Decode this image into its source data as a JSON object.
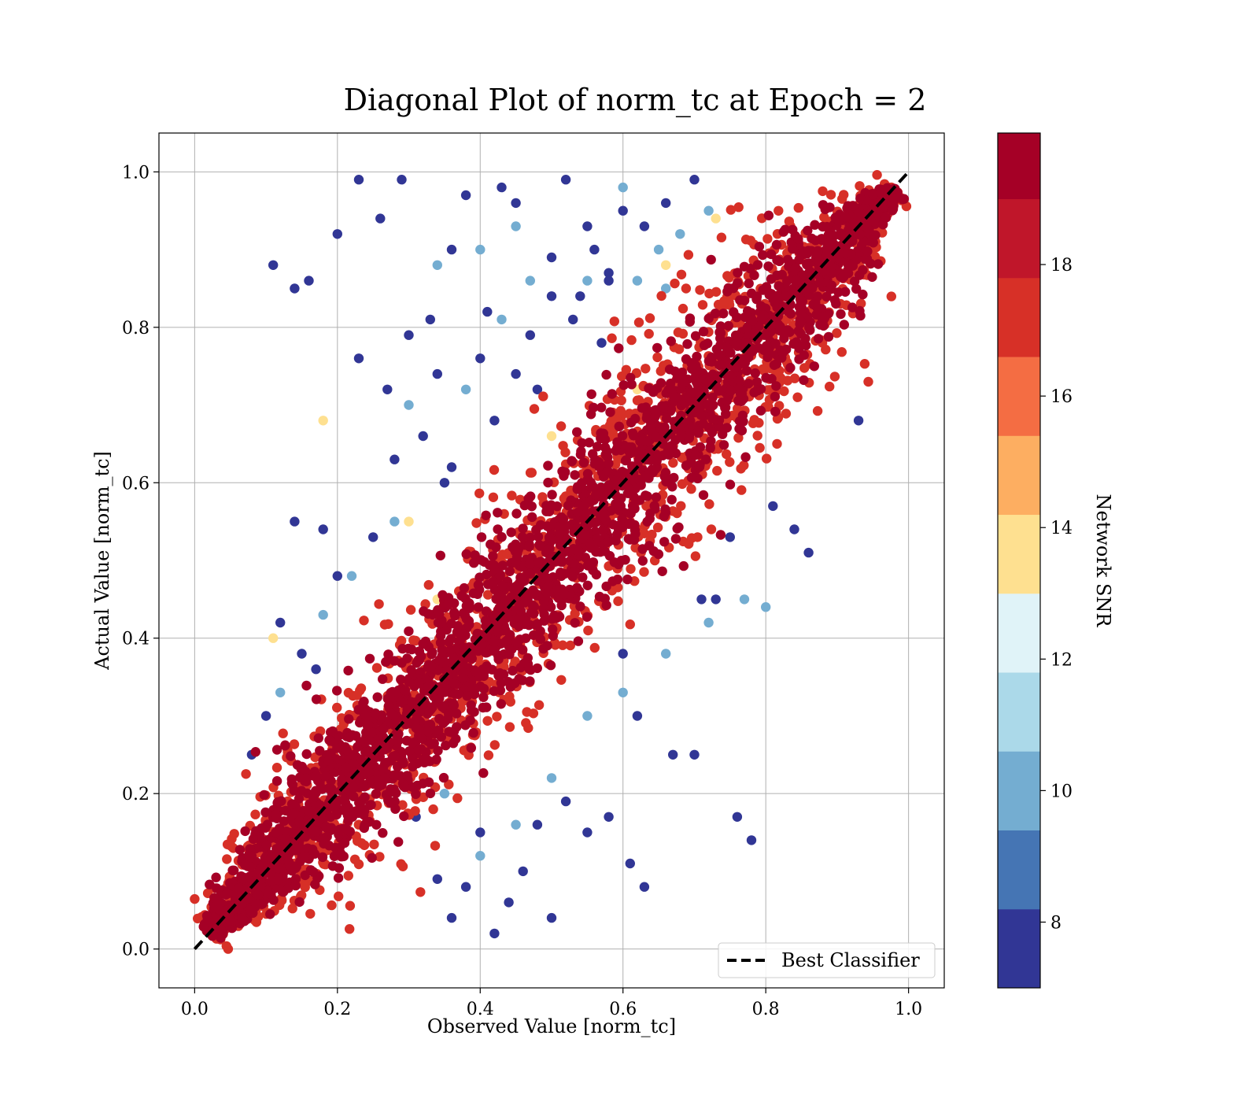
{
  "chart_data": {
    "type": "scatter",
    "title": "Diagonal Plot of norm_tc at Epoch = 2",
    "xlabel": "Observed Value [norm_tc]",
    "ylabel": "Actual Value [norm_tc]",
    "xlim": [
      -0.05,
      1.05
    ],
    "ylim": [
      -0.05,
      1.05
    ],
    "xticks": [
      "0.0",
      "0.2",
      "0.4",
      "0.6",
      "0.8",
      "1.0"
    ],
    "yticks": [
      "0.0",
      "0.2",
      "0.4",
      "0.6",
      "0.8",
      "1.0"
    ],
    "grid": true,
    "reference_line": {
      "name": "Best Classifier",
      "x": [
        0.0,
        1.0
      ],
      "y": [
        0.0,
        1.0
      ],
      "style": "dashed",
      "color": "#000000"
    },
    "legend": {
      "position": "lower-right",
      "entries": [
        "Best Classifier"
      ]
    },
    "colorbar": {
      "label": "Network SNR",
      "min": 7,
      "max": 20,
      "bin_edges": [
        7,
        8.2,
        9.4,
        10.6,
        11.8,
        13.0,
        14.2,
        15.4,
        16.6,
        17.8,
        19.0,
        20.0
      ],
      "bin_colors": [
        "#313695",
        "#4575b4",
        "#74add1",
        "#abd9e9",
        "#e0f3f8",
        "#fee090",
        "#fdae61",
        "#f46d43",
        "#d73027",
        "#c0162a",
        "#a50026"
      ],
      "ticks": [
        "8",
        "10",
        "12",
        "14",
        "16",
        "18"
      ]
    },
    "colors": {
      "high_snr": "#a50026",
      "mid_high_snr": "#d73027",
      "mid_snr": "#f46d43",
      "light_snr": "#fee090",
      "low_snr": "#4575b4",
      "very_low_snr": "#313695"
    },
    "series": [
      {
        "description_role": "core band",
        "snr": 19.5,
        "x_range": [
          0.02,
          0.98
        ],
        "offset_spread": 0.07
      },
      {
        "description_role": "halo",
        "snr": 17.5,
        "x_range": [
          0.02,
          0.98
        ],
        "offset_spread": 0.1
      },
      {
        "description_role": "low snr outliers",
        "points": [
          [
            0.11,
            0.88
          ],
          [
            0.14,
            0.85
          ],
          [
            0.16,
            0.86
          ],
          [
            0.2,
            0.92
          ],
          [
            0.23,
            0.99
          ],
          [
            0.26,
            0.94
          ],
          [
            0.29,
            0.99
          ],
          [
            0.33,
            0.81
          ],
          [
            0.36,
            0.9
          ],
          [
            0.38,
            0.97
          ],
          [
            0.41,
            0.82
          ],
          [
            0.43,
            0.98
          ],
          [
            0.45,
            0.96
          ],
          [
            0.5,
            0.89
          ],
          [
            0.52,
            0.99
          ],
          [
            0.55,
            0.93
          ],
          [
            0.58,
            0.87
          ],
          [
            0.6,
            0.95
          ],
          [
            0.63,
            0.93
          ],
          [
            0.66,
            0.96
          ],
          [
            0.7,
            0.99
          ],
          [
            0.18,
            0.54
          ],
          [
            0.14,
            0.55
          ],
          [
            0.23,
            0.76
          ],
          [
            0.27,
            0.72
          ],
          [
            0.3,
            0.79
          ],
          [
            0.34,
            0.74
          ],
          [
            0.36,
            0.62
          ],
          [
            0.4,
            0.76
          ],
          [
            0.42,
            0.68
          ],
          [
            0.47,
            0.79
          ],
          [
            0.5,
            0.84
          ],
          [
            0.53,
            0.81
          ],
          [
            0.57,
            0.78
          ],
          [
            0.56,
            0.9
          ],
          [
            0.31,
            0.17
          ],
          [
            0.34,
            0.09
          ],
          [
            0.36,
            0.04
          ],
          [
            0.38,
            0.08
          ],
          [
            0.4,
            0.15
          ],
          [
            0.42,
            0.02
          ],
          [
            0.44,
            0.06
          ],
          [
            0.46,
            0.1
          ],
          [
            0.48,
            0.16
          ],
          [
            0.5,
            0.04
          ],
          [
            0.52,
            0.19
          ],
          [
            0.55,
            0.15
          ],
          [
            0.58,
            0.17
          ],
          [
            0.61,
            0.11
          ],
          [
            0.63,
            0.08
          ],
          [
            0.67,
            0.25
          ],
          [
            0.7,
            0.25
          ],
          [
            0.76,
            0.17
          ],
          [
            0.78,
            0.14
          ],
          [
            0.84,
            0.54
          ],
          [
            0.86,
            0.51
          ],
          [
            0.93,
            0.68
          ],
          [
            0.6,
            0.38
          ],
          [
            0.62,
            0.3
          ],
          [
            0.71,
            0.45
          ],
          [
            0.73,
            0.45
          ],
          [
            0.75,
            0.53
          ],
          [
            0.81,
            0.57
          ],
          [
            0.12,
            0.42
          ],
          [
            0.15,
            0.38
          ],
          [
            0.17,
            0.36
          ],
          [
            0.1,
            0.3
          ],
          [
            0.08,
            0.25
          ],
          [
            0.2,
            0.48
          ],
          [
            0.25,
            0.53
          ],
          [
            0.28,
            0.63
          ],
          [
            0.32,
            0.66
          ],
          [
            0.35,
            0.6
          ],
          [
            0.45,
            0.74
          ],
          [
            0.48,
            0.72
          ],
          [
            0.54,
            0.84
          ],
          [
            0.58,
            0.86
          ]
        ],
        "snr": 7.5
      },
      {
        "description_role": "mid snr outliers",
        "points": [
          [
            0.34,
            0.88
          ],
          [
            0.4,
            0.9
          ],
          [
            0.45,
            0.93
          ],
          [
            0.6,
            0.98
          ],
          [
            0.65,
            0.9
          ],
          [
            0.68,
            0.92
          ],
          [
            0.72,
            0.95
          ],
          [
            0.3,
            0.7
          ],
          [
            0.38,
            0.72
          ],
          [
            0.43,
            0.81
          ],
          [
            0.47,
            0.86
          ],
          [
            0.55,
            0.86
          ],
          [
            0.62,
            0.86
          ],
          [
            0.66,
            0.85
          ],
          [
            0.35,
            0.2
          ],
          [
            0.4,
            0.12
          ],
          [
            0.45,
            0.16
          ],
          [
            0.5,
            0.22
          ],
          [
            0.55,
            0.3
          ],
          [
            0.6,
            0.33
          ],
          [
            0.66,
            0.38
          ],
          [
            0.72,
            0.42
          ],
          [
            0.77,
            0.45
          ],
          [
            0.8,
            0.44
          ],
          [
            0.12,
            0.33
          ],
          [
            0.18,
            0.43
          ],
          [
            0.22,
            0.48
          ],
          [
            0.28,
            0.55
          ]
        ],
        "snr": 10.5
      },
      {
        "description_role": "light snr outliers",
        "points": [
          [
            0.18,
            0.68
          ],
          [
            0.11,
            0.4
          ],
          [
            0.3,
            0.55
          ],
          [
            0.34,
            0.45
          ],
          [
            0.66,
            0.88
          ],
          [
            0.73,
            0.94
          ],
          [
            0.5,
            0.66
          ],
          [
            0.62,
            0.72
          ]
        ],
        "snr": 13.5
      }
    ]
  }
}
